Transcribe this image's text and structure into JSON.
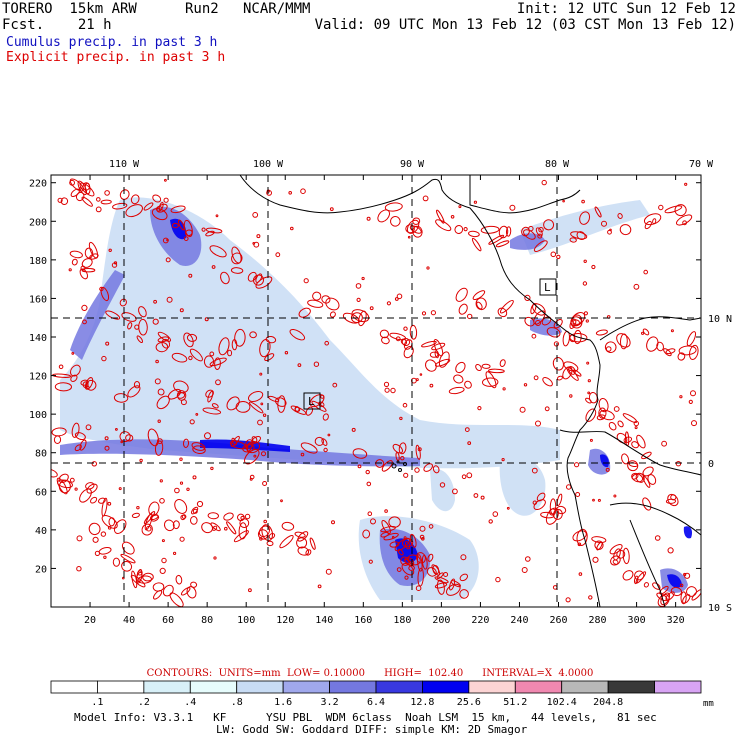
{
  "header": {
    "model": "TORERO  15km ARW",
    "run": "Run2",
    "center": "NCAR/MMM",
    "init": "Init: 12 UTC Sun 12 Feb 12",
    "fcst": "Fcst.    21 h",
    "valid": "Valid: 09 UTC Mon 13 Feb 12 (03 CST Mon 13 Feb 12)",
    "cumulus_label": "Cumulus precip. in past 3 h",
    "explicit_label": "Explicit precip. in past 3 h"
  },
  "colors": {
    "cumulus": "#0000cc",
    "explicit": "#dd0000",
    "coast": "#000000"
  },
  "map": {
    "lon_labels": [
      "110 W",
      "100 W",
      "90 W",
      "80 W",
      "70 W"
    ],
    "lat_labels": [
      "10 N",
      "0",
      "10 S"
    ],
    "x_ticks": [
      "20",
      "40",
      "60",
      "80",
      "100",
      "120",
      "140",
      "160",
      "180",
      "200",
      "220",
      "240",
      "260",
      "280",
      "300",
      "320"
    ],
    "y_ticks": [
      "20",
      "40",
      "60",
      "80",
      "100",
      "120",
      "140",
      "160",
      "180",
      "200",
      "220"
    ],
    "grid_x_range": [
      0,
      333
    ],
    "grid_y_range": [
      0,
      224
    ],
    "low_markers": [
      "L",
      "L"
    ]
  },
  "contours_line": "CONTOURS:  UNITS=mm  LOW= 0.10000      HIGH=  102.40      INTERVAL=X  4.0000",
  "colorbar": {
    "unit": "mm",
    "labels": [
      ".1",
      ".2",
      ".4",
      ".8",
      "1.6",
      "3.2",
      "6.4",
      "12.8",
      "25.6",
      "51.2",
      "102.4",
      "204.8"
    ],
    "colors": [
      "#ffffff",
      "#ffffff",
      "#d8f0f8",
      "#e6fcfc",
      "#c8dcf4",
      "#a0a8ec",
      "#7478e0",
      "#3838e0",
      "#0000f0",
      "#fcd4d4",
      "#f088b0",
      "#b8b8b8",
      "#383838",
      "#d8a4f4"
    ]
  },
  "model_info": [
    "Model Info: V3.3.1   KF      YSU PBL  WDM 6class  Noah LSM  15 km,   44 levels,   81 sec",
    "LW: Godd SW: Goddard DIFF: simple KM: 2D Smagor"
  ]
}
